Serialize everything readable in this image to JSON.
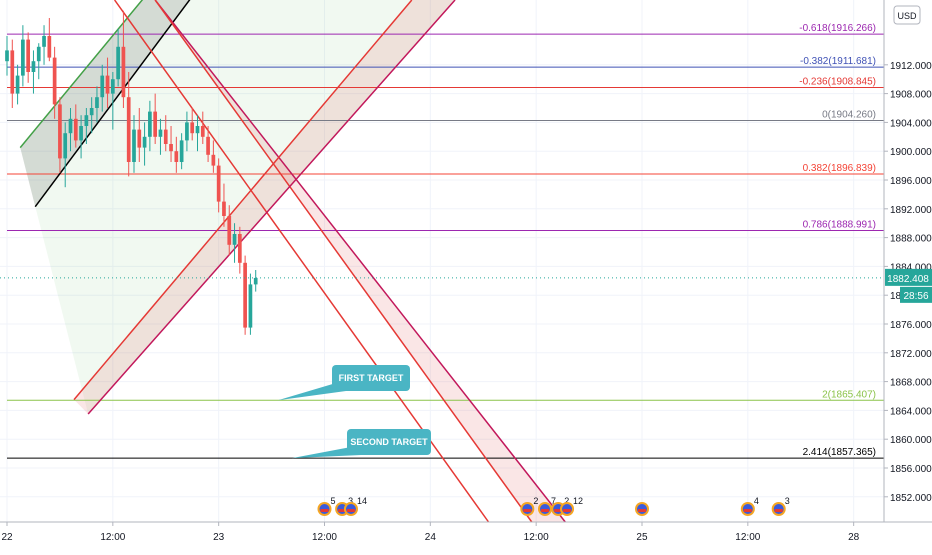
{
  "chart_data": {
    "type": "candlestick",
    "instrument_note": "Gold (XAUUSD) intraday chart with Fibonacci levels and channels",
    "currency_label": "USD",
    "y_axis": {
      "range": [
        1848.5,
        1921.0
      ],
      "ticks": [
        1852.0,
        1856.0,
        1860.0,
        1864.0,
        1868.0,
        1872.0,
        1876.0,
        1880.0,
        1884.0,
        1888.0,
        1892.0,
        1896.0,
        1900.0,
        1904.0,
        1908.0,
        1912.0
      ],
      "tick_labels": [
        "1852.000",
        "1856.000",
        "1860.000",
        "1864.000",
        "1868.000",
        "1872.000",
        "1876.000",
        "1880.000",
        "1884.000",
        "1888.000",
        "1892.000",
        "1896.000",
        "1900.000",
        "1904.000",
        "1908.000",
        "1912.000"
      ]
    },
    "x_axis": {
      "labels": [
        "22",
        "12:00",
        "23",
        "12:00",
        "24",
        "12:00",
        "25",
        "12:00",
        "28"
      ],
      "hours": [
        0,
        12,
        24,
        36,
        48,
        60,
        72,
        84,
        96
      ],
      "range_hours": [
        0,
        99.1
      ]
    },
    "current_price": {
      "value": 1882.408,
      "label": "1882.408",
      "countdown": "28:56",
      "color": "#26a69a"
    },
    "fib_levels": [
      {
        "ratio": "-0.618",
        "price": 1916.266,
        "label": "-0.618(1916.266)",
        "color": "#9c27b0"
      },
      {
        "ratio": "-0.382",
        "price": 1911.681,
        "label": "-0.382(1911.681)",
        "color": "#3f51b5"
      },
      {
        "ratio": "-0.236",
        "price": 1908.845,
        "label": "-0.236(1908.845)",
        "color": "#e53935"
      },
      {
        "ratio": "0",
        "price": 1904.26,
        "label": "0(1904.260)",
        "color": "#787b86"
      },
      {
        "ratio": "0.382",
        "price": 1896.839,
        "label": "0.382(1896.839)",
        "color": "#f44336"
      },
      {
        "ratio": "0.786",
        "price": 1888.991,
        "label": "0.786(1888.991)",
        "color": "#9c27b0"
      },
      {
        "ratio": "2",
        "price": 1865.407,
        "label": "2(1865.407)",
        "color": "#8bc34a"
      },
      {
        "ratio": "2.414",
        "price": 1857.365,
        "label": "2.414(1857.365)",
        "color": "#000000"
      }
    ],
    "candles_note": "Hourly OHLC estimated from chart: [hour, open, high, low, close]",
    "candles": [
      [
        0.0,
        1912.5,
        1916.0,
        1910.5,
        1914.0
      ],
      [
        0.6,
        1914.0,
        1915.5,
        1906.0,
        1908.0
      ],
      [
        1.2,
        1908.0,
        1912.0,
        1906.5,
        1910.5
      ],
      [
        1.8,
        1910.5,
        1917.5,
        1909.0,
        1915.5
      ],
      [
        2.4,
        1915.5,
        1916.5,
        1909.5,
        1911.0
      ],
      [
        3.0,
        1911.0,
        1914.0,
        1908.0,
        1912.5
      ],
      [
        3.6,
        1912.5,
        1915.0,
        1910.0,
        1914.5
      ],
      [
        4.2,
        1914.5,
        1917.5,
        1912.0,
        1916.0
      ],
      [
        4.8,
        1916.0,
        1918.5,
        1912.5,
        1913.0
      ],
      [
        5.4,
        1913.0,
        1914.5,
        1904.5,
        1906.5
      ],
      [
        6.0,
        1906.5,
        1907.5,
        1897.0,
        1899.0
      ],
      [
        6.6,
        1899.0,
        1904.0,
        1895.0,
        1902.5
      ],
      [
        7.2,
        1902.5,
        1906.0,
        1900.0,
        1904.5
      ],
      [
        7.8,
        1904.5,
        1906.5,
        1900.5,
        1901.5
      ],
      [
        8.4,
        1901.5,
        1905.0,
        1899.0,
        1903.5
      ],
      [
        9.0,
        1903.5,
        1906.0,
        1901.0,
        1905.0
      ],
      [
        9.6,
        1905.0,
        1907.5,
        1902.5,
        1906.0
      ],
      [
        10.2,
        1906.0,
        1909.0,
        1904.0,
        1907.5
      ],
      [
        10.8,
        1907.5,
        1912.0,
        1905.5,
        1910.5
      ],
      [
        11.4,
        1910.5,
        1913.0,
        1906.0,
        1908.0
      ],
      [
        12.0,
        1908.0,
        1911.0,
        1903.0,
        1910.0
      ],
      [
        12.6,
        1910.0,
        1917.0,
        1909.0,
        1914.5
      ],
      [
        13.2,
        1914.5,
        1919.5,
        1906.0,
        1907.5
      ],
      [
        13.8,
        1907.5,
        1911.0,
        1896.5,
        1898.5
      ],
      [
        14.4,
        1898.5,
        1905.0,
        1897.0,
        1903.0
      ],
      [
        15.0,
        1903.0,
        1906.0,
        1898.5,
        1900.5
      ],
      [
        15.6,
        1900.5,
        1904.0,
        1898.0,
        1902.0
      ],
      [
        16.2,
        1902.0,
        1907.0,
        1900.0,
        1905.5
      ],
      [
        16.8,
        1905.5,
        1908.0,
        1901.0,
        1902.0
      ],
      [
        17.4,
        1902.0,
        1904.5,
        1899.5,
        1903.0
      ],
      [
        18.0,
        1903.0,
        1905.0,
        1900.0,
        1901.0
      ],
      [
        18.6,
        1901.0,
        1903.5,
        1898.5,
        1900.0
      ],
      [
        19.2,
        1900.0,
        1902.0,
        1897.0,
        1898.5
      ],
      [
        19.8,
        1898.5,
        1902.5,
        1897.5,
        1901.5
      ],
      [
        20.4,
        1901.5,
        1905.5,
        1900.0,
        1904.0
      ],
      [
        21.0,
        1904.0,
        1906.0,
        1901.5,
        1902.5
      ],
      [
        21.6,
        1902.5,
        1905.0,
        1900.0,
        1903.5
      ],
      [
        22.2,
        1903.5,
        1905.5,
        1901.0,
        1902.0
      ],
      [
        22.8,
        1902.0,
        1903.5,
        1898.5,
        1899.5
      ],
      [
        23.4,
        1899.5,
        1901.5,
        1897.0,
        1898.0
      ],
      [
        24.0,
        1898.0,
        1899.0,
        1891.5,
        1893.0
      ],
      [
        24.6,
        1893.0,
        1895.5,
        1889.5,
        1891.0
      ],
      [
        25.2,
        1891.0,
        1892.5,
        1885.5,
        1887.0
      ],
      [
        25.8,
        1887.0,
        1890.0,
        1884.5,
        1888.5
      ],
      [
        26.4,
        1888.5,
        1889.5,
        1883.0,
        1884.5
      ],
      [
        27.0,
        1884.5,
        1885.5,
        1874.5,
        1875.5
      ],
      [
        27.6,
        1875.5,
        1883.0,
        1874.5,
        1881.5
      ],
      [
        28.2,
        1881.5,
        1883.5,
        1880.5,
        1882.4
      ]
    ],
    "lines": [
      {
        "name": "up-channel-green",
        "color": "#43a047",
        "points": [
          [
            1.5,
            1900.5
          ],
          [
            16.0,
            1922.0
          ]
        ]
      },
      {
        "name": "up-channel-black",
        "color": "#000000",
        "points": [
          [
            3.2,
            1892.3
          ],
          [
            21.0,
            1921.5
          ]
        ]
      },
      {
        "name": "down-channel-red-left",
        "color": "#e53935",
        "points": [
          [
            12.2,
            1921.0
          ],
          [
            54.6,
            1848.5
          ]
        ]
      },
      {
        "name": "down-channel-magenta-left",
        "color": "#c2185b",
        "points": [
          [
            16.8,
            1921.0
          ],
          [
            63.3,
            1848.5
          ]
        ]
      },
      {
        "name": "down-channel-red-right",
        "color": "#e53935",
        "points": [
          [
            16.8,
            1921.0
          ],
          [
            59.5,
            1848.5
          ]
        ]
      },
      {
        "name": "up-channel-red",
        "color": "#e53935",
        "points": [
          [
            7.6,
            1865.5
          ],
          [
            45.9,
            1921.0
          ]
        ]
      },
      {
        "name": "up-channel-magenta",
        "color": "#c2185b",
        "points": [
          [
            9.2,
            1863.5
          ],
          [
            50.8,
            1921.0
          ]
        ]
      }
    ],
    "shaded_regions": [
      {
        "name": "green-fan",
        "color": "#4caf50",
        "opacity": 0.08
      },
      {
        "name": "dark-wedge",
        "color": "#555555",
        "opacity": 0.18
      },
      {
        "name": "pink-channel-up",
        "color": "#e57373",
        "opacity": 0.18
      },
      {
        "name": "pink-channel-down",
        "color": "#e57373",
        "opacity": 0.18
      }
    ],
    "annotations": [
      {
        "text": "FIRST TARGET",
        "bg": "#4ab5c4",
        "anchor_price": 1865.407
      },
      {
        "text": "SECOND TARGET",
        "bg": "#4ab5c4",
        "anchor_price": 1857.365
      }
    ],
    "event_markers": [
      {
        "hour": 36.0,
        "count": "5"
      },
      {
        "hour": 38.0,
        "count": "3"
      },
      {
        "hour": 39.0,
        "count": "14"
      },
      {
        "hour": 59.0,
        "count": "2"
      },
      {
        "hour": 61.0,
        "count": "7"
      },
      {
        "hour": 62.5,
        "count": "2"
      },
      {
        "hour": 63.5,
        "count": "12"
      },
      {
        "hour": 72.0,
        "count": ""
      },
      {
        "hour": 84.0,
        "count": "4"
      },
      {
        "hour": 87.5,
        "count": "3"
      }
    ],
    "colors": {
      "up": "#26a69a",
      "down": "#ef5350",
      "grid": "#f0f3fa",
      "axis_text": "#131722"
    }
  }
}
